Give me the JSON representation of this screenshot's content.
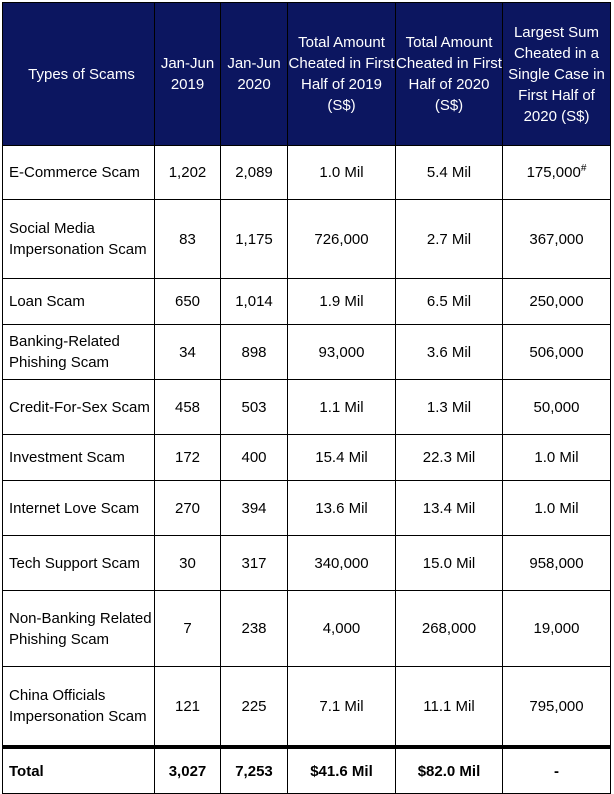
{
  "headers": [
    "Types of Scams",
    "Jan-Jun 2019",
    "Jan-Jun 2020",
    "Total Amount Cheated in First Half of 2019 (S$)",
    "Total Amount Cheated in First Half of 2020 (S$)",
    "Largest Sum Cheated in a Single Case in First Half of 2020 (S$)"
  ],
  "rows": [
    {
      "type": "E-Commerce Scam",
      "h1_2019": "1,202",
      "h1_2020": "2,089",
      "amt_2019": "1.0 Mil",
      "amt_2020": "5.4 Mil",
      "largest": "175,000",
      "note": "#"
    },
    {
      "type": "Social Media Impersonation Scam",
      "h1_2019": "83",
      "h1_2020": "1,175",
      "amt_2019": "726,000",
      "amt_2020": "2.7 Mil",
      "largest": "367,000"
    },
    {
      "type": "Loan Scam",
      "h1_2019": "650",
      "h1_2020": "1,014",
      "amt_2019": "1.9 Mil",
      "amt_2020": "6.5 Mil",
      "largest": "250,000"
    },
    {
      "type": "Banking-Related Phishing Scam",
      "h1_2019": "34",
      "h1_2020": "898",
      "amt_2019": "93,000",
      "amt_2020": "3.6 Mil",
      "largest": "506,000"
    },
    {
      "type": "Credit-For-Sex Scam",
      "h1_2019": "458",
      "h1_2020": "503",
      "amt_2019": "1.1 Mil",
      "amt_2020": "1.3 Mil",
      "largest": "50,000"
    },
    {
      "type": "Investment Scam",
      "h1_2019": "172",
      "h1_2020": "400",
      "amt_2019": "15.4 Mil",
      "amt_2020": "22.3 Mil",
      "largest": "1.0 Mil"
    },
    {
      "type": "Internet Love Scam",
      "h1_2019": "270",
      "h1_2020": "394",
      "amt_2019": "13.6 Mil",
      "amt_2020": "13.4 Mil",
      "largest": "1.0 Mil"
    },
    {
      "type": "Tech Support Scam",
      "h1_2019": "30",
      "h1_2020": "317",
      "amt_2019": "340,000",
      "amt_2020": "15.0 Mil",
      "largest": "958,000"
    },
    {
      "type": "Non-Banking Related Phishing Scam",
      "h1_2019": "7",
      "h1_2020": "238",
      "amt_2019": "4,000",
      "amt_2020": "268,000",
      "largest": "19,000"
    },
    {
      "type": "China Officials Impersonation Scam",
      "h1_2019": "121",
      "h1_2020": "225",
      "amt_2019": "7.1 Mil",
      "amt_2020": "11.1 Mil",
      "largest": "795,000"
    }
  ],
  "total": {
    "label": "Total",
    "h1_2019": "3,027",
    "h1_2020": "7,253",
    "amt_2019": "$41.6 Mil",
    "amt_2020": "$82.0 Mil",
    "largest": "-"
  }
}
